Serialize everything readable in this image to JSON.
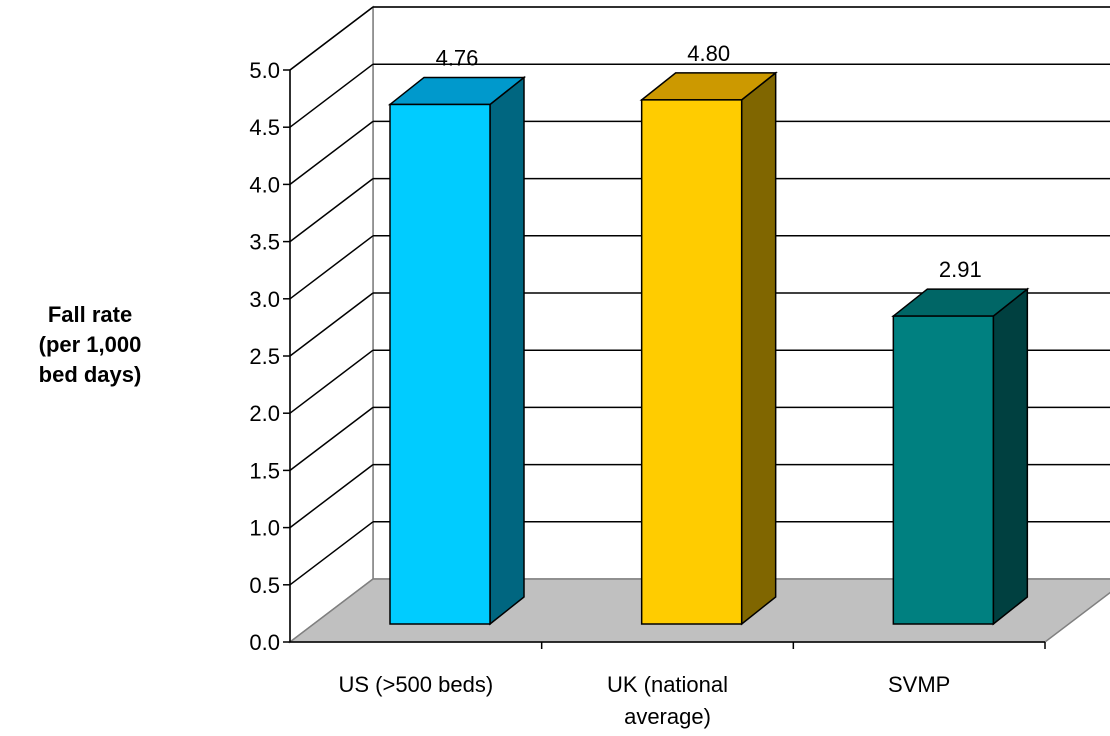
{
  "chart_data": {
    "type": "bar",
    "title": "",
    "xlabel": "",
    "ylabel_lines": [
      "Fall rate",
      "(per 1,000",
      "bed days)"
    ],
    "categories": [
      [
        "US (>500 beds)"
      ],
      [
        "UK (national",
        "average)"
      ],
      [
        "SVMP"
      ]
    ],
    "values": [
      4.76,
      4.8,
      2.91
    ],
    "value_labels": [
      "4.76",
      "4.80",
      "2.91"
    ],
    "ylim": [
      0,
      5
    ],
    "yticks": [
      "0.0",
      "0.5",
      "1.0",
      "1.5",
      "2.0",
      "2.5",
      "3.0",
      "3.5",
      "4.0",
      "4.5",
      "5.0"
    ],
    "grid": true,
    "legend": "none",
    "style": "3d",
    "colors": [
      {
        "front": "#00CCFF",
        "side": "#006680",
        "top": "#0099CC"
      },
      {
        "front": "#FFCC00",
        "side": "#806600",
        "top": "#CC9900"
      },
      {
        "front": "#008080",
        "side": "#004040",
        "top": "#006666"
      }
    ],
    "floor_color": "#C0C0C0"
  }
}
